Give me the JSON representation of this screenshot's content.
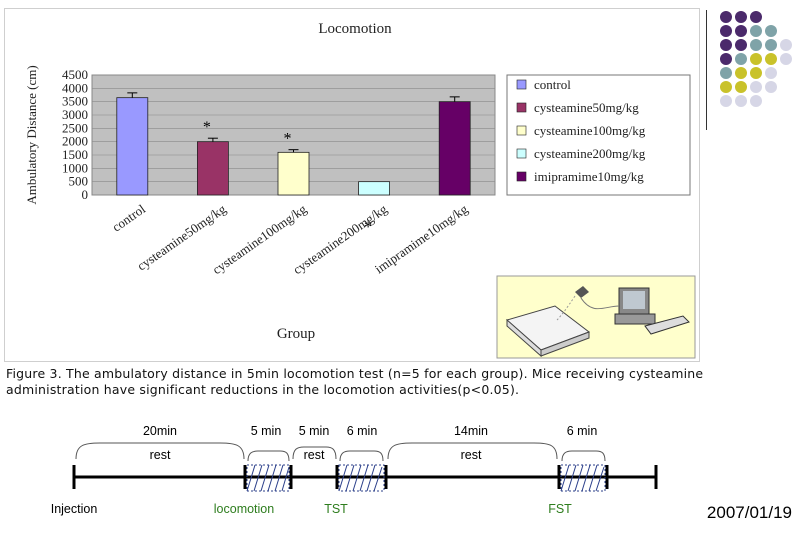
{
  "chart_data": {
    "type": "bar",
    "title": "Locomotion",
    "ylabel": "Ambulatory Distance (cm)",
    "xlabel": "Group",
    "ylim": [
      0,
      4500
    ],
    "yticks": [
      "0",
      "500",
      "1000",
      "1500",
      "2000",
      "2500",
      "3000",
      "3500",
      "4000",
      "4500"
    ],
    "categories": [
      "control",
      "cysteamine50mg/kg",
      "cysteamine100mg/kg",
      "cysteamine200mg/kg",
      "imipramime10mg/kg"
    ],
    "values": [
      3650,
      2000,
      1600,
      500,
      3500
    ],
    "errors": [
      180,
      130,
      100,
      0,
      180
    ],
    "significance": [
      "",
      "*",
      "*",
      "*",
      ""
    ],
    "colors": [
      "#9999ff",
      "#993366",
      "#ffffcc",
      "#ccffff",
      "#660066"
    ],
    "legend": [
      "control",
      "cysteamine50mg/kg",
      "cysteamine100mg/kg",
      "cysteamine200mg/kg",
      "imipramime10mg/kg"
    ],
    "legend_position": "right",
    "grid": true,
    "plot_background": "#c0c0c0"
  },
  "caption": {
    "line1": "Figure 3. The ambulatory distance in 5min locomotion test (n=5 for each group).  Mice receiving cysteamine",
    "line2": "administration have significant reductions in the locomotion activities(p<0.05)."
  },
  "timeline": {
    "durations": [
      "20min",
      "5 min",
      "5 min",
      "6 min",
      "14min",
      "6 min"
    ],
    "rest_labels": [
      "rest",
      "rest",
      "rest"
    ],
    "events": [
      "Injection",
      "locomotion",
      "TST",
      "FST"
    ],
    "event_colors": [
      "#000000",
      "#2e7d1e",
      "#2e7d1e",
      "#2e7d1e"
    ]
  },
  "date": "2007/01/19",
  "decor": {
    "dot_colors": [
      "#4b2a6b",
      "#7fa3a8",
      "#c9c22a",
      "#d6d6e6"
    ]
  }
}
